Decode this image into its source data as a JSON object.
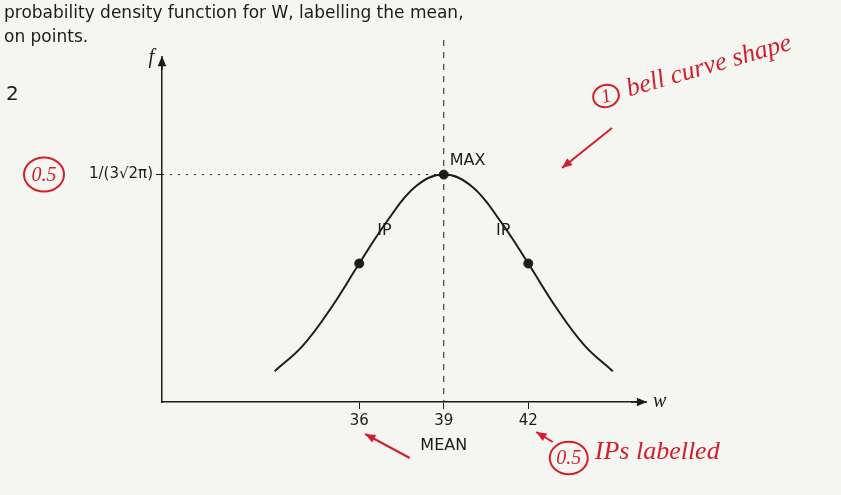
{
  "chart_data": {
    "type": "line",
    "question_text": [
      "probability density function for W, labelling the mean,",
      "on points."
    ],
    "part": "2",
    "y_label": "f",
    "x_label": "w",
    "x": [
      33,
      34,
      35,
      36,
      37,
      38,
      39,
      40,
      41,
      42,
      43,
      44,
      45
    ],
    "values": [
      0.018,
      0.033,
      0.055,
      0.081,
      0.106,
      0.126,
      0.133,
      0.126,
      0.106,
      0.081,
      0.055,
      0.033,
      0.018
    ],
    "color": "#1c1c1c",
    "xlim": [
      29,
      46
    ],
    "ylim": [
      0,
      0.2
    ],
    "xticks": [
      36,
      39,
      42
    ],
    "yticks": [
      {
        "value": 0.133,
        "label": "1/(3√2π)"
      }
    ],
    "grid": false,
    "mean": 39,
    "mean_label": "MEAN",
    "points": [
      {
        "label": "MAX",
        "x": 39,
        "y": 0.133
      },
      {
        "label": "IP",
        "x": 36,
        "y": 0.081
      },
      {
        "label": "IP",
        "x": 42,
        "y": 0.081
      }
    ],
    "marking": {
      "color": "#d21f2b",
      "bell": {
        "score": 1,
        "text": "bell curve shape"
      },
      "max_score": 0.5,
      "ip": {
        "score": 0.5,
        "text": "IPs labelled"
      }
    }
  }
}
